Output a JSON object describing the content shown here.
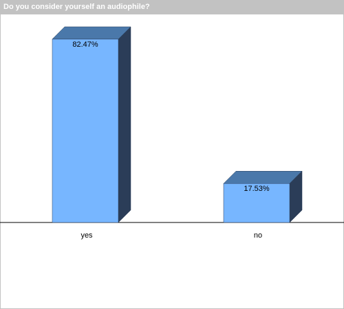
{
  "chart_data": {
    "type": "bar",
    "title": "Do you consider yourself an audiophile?",
    "categories": [
      "yes",
      "no"
    ],
    "values": [
      82.47,
      17.53
    ],
    "value_labels": [
      "82.47%",
      "17.53%"
    ],
    "color": "#77b6ff"
  }
}
